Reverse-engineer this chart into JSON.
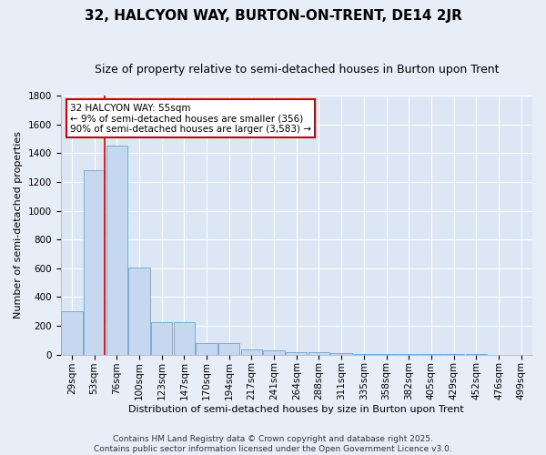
{
  "title": "32, HALCYON WAY, BURTON-ON-TRENT, DE14 2JR",
  "subtitle": "Size of property relative to semi-detached houses in Burton upon Trent",
  "xlabel": "Distribution of semi-detached houses by size in Burton upon Trent",
  "ylabel": "Number of semi-detached properties",
  "footer_line1": "Contains HM Land Registry data © Crown copyright and database right 2025.",
  "footer_line2": "Contains public sector information licensed under the Open Government Licence v3.0.",
  "annotation_title": "32 HALCYON WAY: 55sqm",
  "annotation_line1": "← 9% of semi-detached houses are smaller (356)",
  "annotation_line2": "90% of semi-detached houses are larger (3,583) →",
  "bar_categories": [
    "29sqm",
    "53sqm",
    "76sqm",
    "100sqm",
    "123sqm",
    "147sqm",
    "170sqm",
    "194sqm",
    "217sqm",
    "241sqm",
    "264sqm",
    "288sqm",
    "311sqm",
    "335sqm",
    "358sqm",
    "382sqm",
    "405sqm",
    "429sqm",
    "452sqm",
    "476sqm",
    "499sqm"
  ],
  "bar_values": [
    300,
    1280,
    1450,
    605,
    225,
    225,
    80,
    80,
    38,
    30,
    20,
    15,
    8,
    5,
    4,
    3,
    3,
    2,
    2,
    1,
    1
  ],
  "bar_color": "#c5d8f0",
  "bar_edge_color": "#7aadd4",
  "background_color": "#e8eef8",
  "grid_color": "#ffffff",
  "plot_bg_color": "#dce6f5",
  "annotation_box_color": "#ffffff",
  "annotation_box_edge": "#cc0000",
  "vline_color": "#cc0000",
  "ylim": [
    0,
    1800
  ],
  "title_fontsize": 11,
  "subtitle_fontsize": 9,
  "axis_label_fontsize": 8,
  "tick_fontsize": 7.5,
  "annotation_fontsize": 7.5,
  "footer_fontsize": 6.5,
  "vline_position": 1.5
}
